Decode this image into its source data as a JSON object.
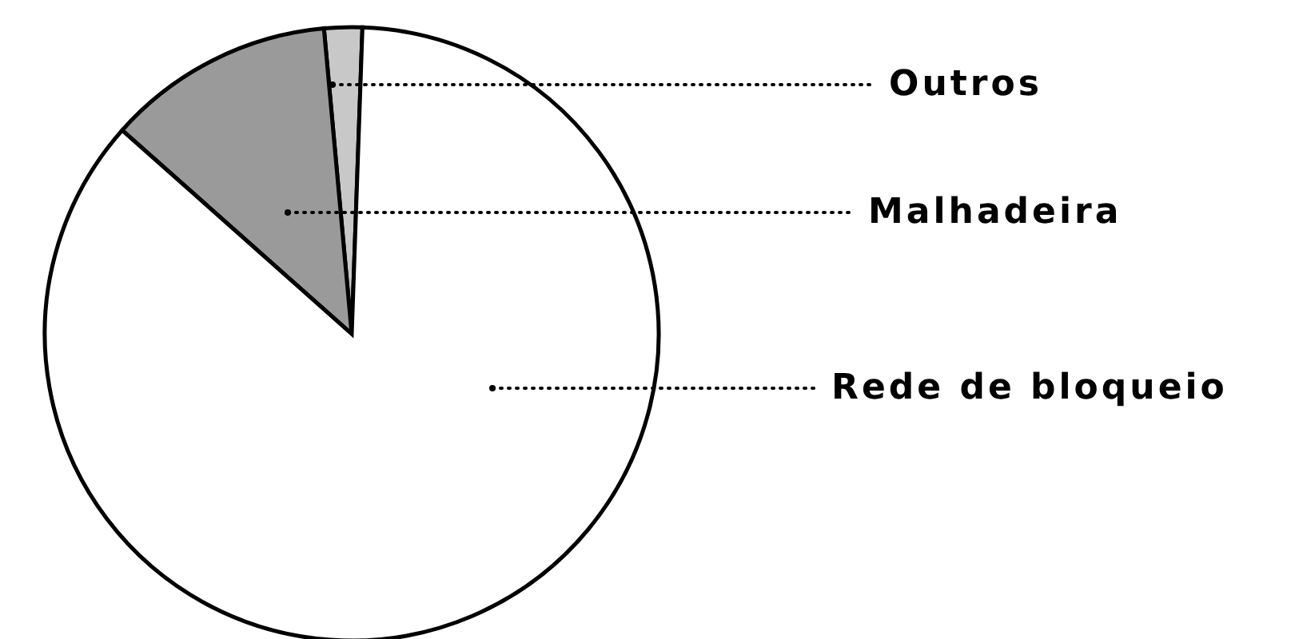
{
  "chart_data": {
    "type": "pie",
    "categories": [
      "Outros",
      "Malhadeira",
      "Rede de bloqueio"
    ],
    "values": [
      2,
      12,
      86
    ],
    "colors": [
      "#c8c8c8",
      "#9a9a9a",
      "#ffffff"
    ]
  }
}
